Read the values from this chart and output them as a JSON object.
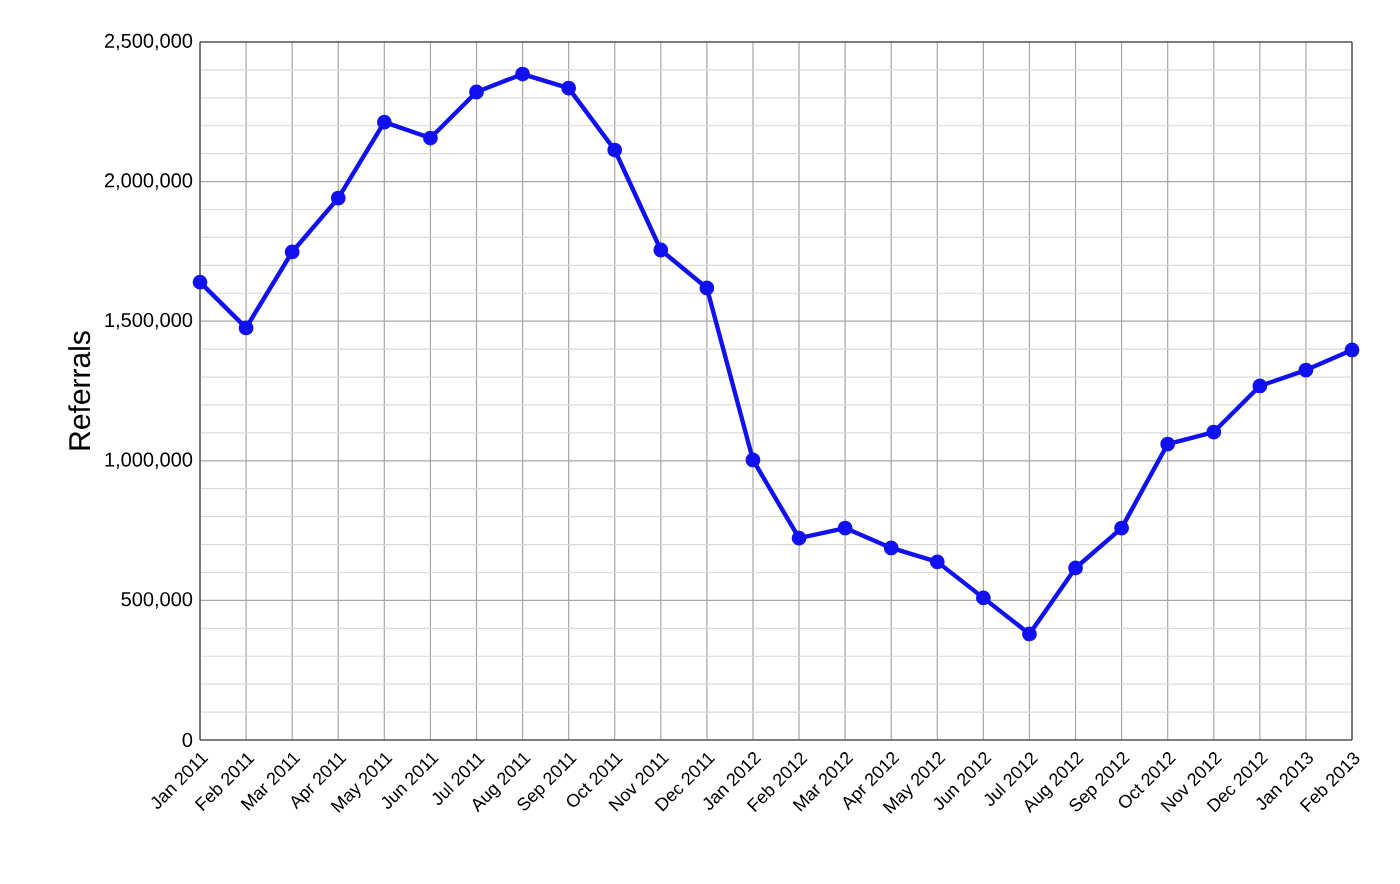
{
  "chart_data": {
    "type": "line",
    "ylabel": "Referrals",
    "categories": [
      "Jan 2011",
      "Feb 2011",
      "Mar 2011",
      "Apr 2011",
      "May 2011",
      "Jun 2011",
      "Jul 2011",
      "Aug 2011",
      "Sep 2011",
      "Oct 2011",
      "Nov 2011",
      "Dec 2011",
      "Jan 2012",
      "Feb 2012",
      "Mar 2012",
      "Apr 2012",
      "May 2012",
      "Jun 2012",
      "Jul 2012",
      "Aug 2012",
      "Sep 2012",
      "Oct 2012",
      "Nov 2012",
      "Dec 2012",
      "Jan 2013",
      "Feb 2013"
    ],
    "series": [
      {
        "color": "#1010f0",
        "values": [
          1640000,
          1476000,
          1748000,
          1941000,
          2213000,
          2156000,
          2321000,
          2385000,
          2335000,
          2113000,
          1755000,
          1619000,
          1003000,
          723000,
          759000,
          688000,
          638000,
          509000,
          380000,
          616000,
          759000,
          1060000,
          1103000,
          1268000,
          1325000,
          1397000
        ]
      }
    ],
    "ylim": [
      0,
      2500000
    ],
    "yticks": [
      {
        "value": 0,
        "label": "0"
      },
      {
        "value": 500000,
        "label": "500,000"
      },
      {
        "value": 1000000,
        "label": "1,000,000"
      },
      {
        "value": 1500000,
        "label": "1,500,000"
      },
      {
        "value": 2000000,
        "label": "2,000,000"
      },
      {
        "value": 2500000,
        "label": "2,500,000"
      }
    ],
    "grid": true,
    "marker": "circle",
    "line_style": "solid"
  }
}
